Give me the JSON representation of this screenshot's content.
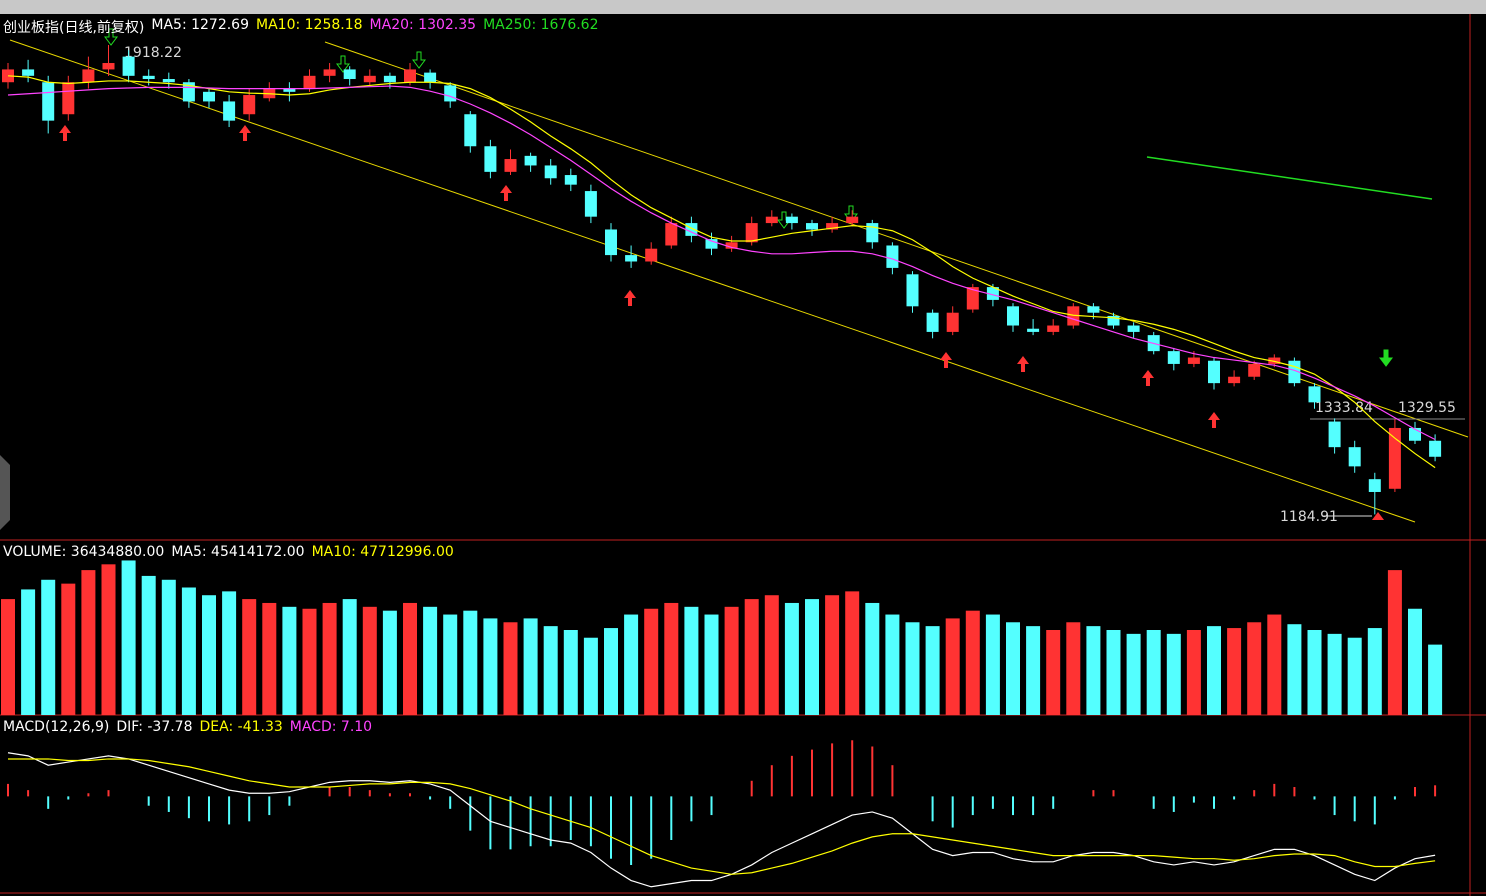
{
  "chart_data": [
    {
      "type": "candlestick",
      "title": "创业板指(日线,前复权)",
      "indicators": [
        {
          "label": "MA5: 1272.69",
          "color": "#ffffff"
        },
        {
          "label": "MA10: 1258.18",
          "color": "#ffff00"
        },
        {
          "label": "MA20: 1302.35",
          "color": "#ff44ff"
        },
        {
          "label": "MA250: 1676.62",
          "color": "#22dd22"
        }
      ],
      "up_color": "#ff3333",
      "down_color": "#54ffff",
      "ylim": [
        1145,
        1965
      ],
      "annotations": [
        "1918.22",
        "1184.91",
        "1333.84",
        "1329.55"
      ],
      "ohlc": [
        [
          1860,
          1890,
          1850,
          1880
        ],
        [
          1880,
          1895,
          1860,
          1870
        ],
        [
          1860,
          1870,
          1780,
          1800
        ],
        [
          1810,
          1870,
          1800,
          1860
        ],
        [
          1860,
          1900,
          1850,
          1880
        ],
        [
          1880,
          1918.22,
          1870,
          1890
        ],
        [
          1900,
          1910,
          1860,
          1870
        ],
        [
          1870,
          1880,
          1855,
          1865
        ],
        [
          1865,
          1875,
          1850,
          1860
        ],
        [
          1860,
          1865,
          1820,
          1830
        ],
        [
          1845,
          1850,
          1820,
          1830
        ],
        [
          1830,
          1840,
          1790,
          1800
        ],
        [
          1810,
          1850,
          1800,
          1840
        ],
        [
          1835,
          1860,
          1830,
          1850
        ],
        [
          1850,
          1860,
          1830,
          1845
        ],
        [
          1850,
          1880,
          1845,
          1870
        ],
        [
          1870,
          1890,
          1860,
          1880
        ],
        [
          1880,
          1885,
          1855,
          1865
        ],
        [
          1860,
          1880,
          1855,
          1870
        ],
        [
          1870,
          1875,
          1850,
          1860
        ],
        [
          1860,
          1890,
          1855,
          1880
        ],
        [
          1875,
          1880,
          1850,
          1860
        ],
        [
          1855,
          1860,
          1820,
          1830
        ],
        [
          1810,
          1815,
          1750,
          1760
        ],
        [
          1760,
          1770,
          1710,
          1720
        ],
        [
          1720,
          1755,
          1715,
          1740
        ],
        [
          1745,
          1750,
          1720,
          1730
        ],
        [
          1730,
          1740,
          1700,
          1710
        ],
        [
          1715,
          1725,
          1690,
          1700
        ],
        [
          1690,
          1700,
          1640,
          1650
        ],
        [
          1630,
          1640,
          1580,
          1590
        ],
        [
          1590,
          1605,
          1570,
          1580
        ],
        [
          1580,
          1610,
          1575,
          1600
        ],
        [
          1605,
          1650,
          1600,
          1640
        ],
        [
          1640,
          1650,
          1610,
          1620
        ],
        [
          1615,
          1625,
          1590,
          1600
        ],
        [
          1600,
          1620,
          1595,
          1610
        ],
        [
          1610,
          1650,
          1605,
          1640
        ],
        [
          1640,
          1660,
          1635,
          1650
        ],
        [
          1650,
          1655,
          1630,
          1640
        ],
        [
          1640,
          1645,
          1620,
          1630
        ],
        [
          1630,
          1650,
          1625,
          1640
        ],
        [
          1640,
          1660,
          1635,
          1650
        ],
        [
          1640,
          1645,
          1600,
          1610
        ],
        [
          1605,
          1610,
          1560,
          1570
        ],
        [
          1560,
          1565,
          1500,
          1510
        ],
        [
          1500,
          1505,
          1460,
          1470
        ],
        [
          1470,
          1510,
          1465,
          1500
        ],
        [
          1505,
          1545,
          1500,
          1540
        ],
        [
          1540,
          1545,
          1510,
          1520
        ],
        [
          1510,
          1515,
          1470,
          1480
        ],
        [
          1475,
          1490,
          1465,
          1470
        ],
        [
          1470,
          1490,
          1465,
          1480
        ],
        [
          1480,
          1515,
          1475,
          1510
        ],
        [
          1510,
          1515,
          1490,
          1500
        ],
        [
          1495,
          1500,
          1475,
          1480
        ],
        [
          1480,
          1485,
          1460,
          1470
        ],
        [
          1465,
          1470,
          1435,
          1440
        ],
        [
          1440,
          1445,
          1410,
          1420
        ],
        [
          1420,
          1440,
          1415,
          1430
        ],
        [
          1425,
          1430,
          1380,
          1390
        ],
        [
          1390,
          1410,
          1385,
          1400
        ],
        [
          1400,
          1425,
          1395,
          1420
        ],
        [
          1420,
          1435,
          1415,
          1430
        ],
        [
          1425,
          1430,
          1385,
          1390
        ],
        [
          1385,
          1390,
          1350,
          1360
        ],
        [
          1330,
          1335,
          1280,
          1290
        ],
        [
          1290,
          1300,
          1250,
          1260
        ],
        [
          1240,
          1250,
          1184.91,
          1220
        ],
        [
          1225,
          1333.84,
          1220,
          1320
        ],
        [
          1320,
          1329.55,
          1295,
          1300
        ],
        [
          1300,
          1310,
          1268,
          1275
        ]
      ],
      "series": [
        {
          "name": "MA10",
          "color": "#ffff00",
          "values": [
            1870,
            1868,
            1860,
            1858,
            1860,
            1862,
            1862,
            1860,
            1858,
            1855,
            1850,
            1845,
            1843,
            1842,
            1840,
            1842,
            1848,
            1852,
            1855,
            1858,
            1860,
            1860,
            1858,
            1850,
            1836,
            1818,
            1798,
            1776,
            1756,
            1734,
            1708,
            1684,
            1664,
            1648,
            1632,
            1618,
            1612,
            1612,
            1618,
            1624,
            1628,
            1632,
            1636,
            1634,
            1628,
            1614,
            1594,
            1572,
            1554,
            1540,
            1526,
            1514,
            1502,
            1496,
            1494,
            1492,
            1488,
            1482,
            1474,
            1464,
            1452,
            1440,
            1430,
            1424,
            1416,
            1404,
            1384,
            1360,
            1330,
            1304,
            1280,
            1258
          ]
        },
        {
          "name": "MA20",
          "color": "#ff44ff",
          "values": [
            1840,
            1842,
            1844,
            1846,
            1848,
            1850,
            1851,
            1852,
            1852,
            1852,
            1851,
            1850,
            1850,
            1850,
            1850,
            1850,
            1851,
            1852,
            1853,
            1854,
            1852,
            1846,
            1838,
            1826,
            1812,
            1796,
            1778,
            1758,
            1738,
            1716,
            1694,
            1674,
            1656,
            1640,
            1626,
            1612,
            1602,
            1596,
            1592,
            1592,
            1594,
            1596,
            1596,
            1592,
            1584,
            1572,
            1558,
            1546,
            1536,
            1528,
            1520,
            1510,
            1500,
            1490,
            1480,
            1470,
            1460,
            1452,
            1444,
            1436,
            1430,
            1426,
            1422,
            1418,
            1410,
            1398,
            1384,
            1370,
            1354,
            1336,
            1318,
            1302
          ]
        }
      ]
    },
    {
      "type": "volume",
      "indicators": [
        {
          "label": "VOLUME: 36434880.00",
          "color": "#ffffff"
        },
        {
          "label": "MA5: 45414172.00",
          "color": "#ffffff"
        },
        {
          "label": "MA10: 47712996.00",
          "color": "#ffff00"
        }
      ],
      "ylim": [
        0,
        88000000
      ],
      "values": [
        60000000,
        65000000,
        70000000,
        68000000,
        75000000,
        78000000,
        80000000,
        72000000,
        70000000,
        66000000,
        62000000,
        64000000,
        60000000,
        58000000,
        56000000,
        55000000,
        58000000,
        60000000,
        56000000,
        54000000,
        58000000,
        56000000,
        52000000,
        54000000,
        50000000,
        48000000,
        50000000,
        46000000,
        44000000,
        40000000,
        45000000,
        52000000,
        55000000,
        58000000,
        56000000,
        52000000,
        56000000,
        60000000,
        62000000,
        58000000,
        60000000,
        62000000,
        64000000,
        58000000,
        52000000,
        48000000,
        46000000,
        50000000,
        54000000,
        52000000,
        48000000,
        46000000,
        44000000,
        48000000,
        46000000,
        44000000,
        42000000,
        44000000,
        42000000,
        44000000,
        46000000,
        45000000,
        48000000,
        52000000,
        47000000,
        44000000,
        42000000,
        40000000,
        45000000,
        75000000,
        55000000,
        36434880
      ]
    },
    {
      "type": "macd",
      "indicators": [
        {
          "label": "MACD(12,26,9)",
          "color": "#ffffff"
        },
        {
          "label": "DIF: -37.78",
          "color": "#ffffff"
        },
        {
          "label": "DEA: -41.33",
          "color": "#ffff00"
        },
        {
          "label": "MACD: 7.10",
          "color": "#ff44ff"
        }
      ],
      "ylim": [
        -62,
        49
      ],
      "up_color": "#ff3333",
      "down_color": "#54ffff",
      "values": [
        8,
        4,
        -8,
        -2,
        2,
        4,
        0,
        -6,
        -10,
        -14,
        -16,
        -18,
        -16,
        -12,
        -6,
        0,
        6,
        6,
        4,
        2,
        2,
        -2,
        -8,
        -22,
        -34,
        -34,
        -32,
        -32,
        -28,
        -32,
        -40,
        -44,
        -40,
        -28,
        -16,
        -12,
        0,
        10,
        20,
        26,
        30,
        34,
        36,
        32,
        20,
        0,
        -16,
        -20,
        -12,
        -8,
        -12,
        -12,
        -8,
        0,
        4,
        4,
        0,
        -8,
        -10,
        -4,
        -8,
        -2,
        4,
        8,
        6,
        -2,
        -12,
        -16,
        -18,
        -2,
        6,
        7.1
      ],
      "series": [
        {
          "name": "DIF",
          "color": "#ffffff",
          "values": [
            28,
            26,
            20,
            22,
            24,
            26,
            24,
            20,
            16,
            12,
            8,
            4,
            2,
            2,
            3,
            6,
            9,
            10,
            10,
            9,
            10,
            8,
            4,
            -6,
            -16,
            -20,
            -24,
            -28,
            -30,
            -36,
            -46,
            -54,
            -58,
            -56,
            -54,
            -54,
            -50,
            -44,
            -36,
            -30,
            -24,
            -18,
            -12,
            -10,
            -14,
            -24,
            -34,
            -38,
            -36,
            -36,
            -40,
            -42,
            -42,
            -38,
            -36,
            -36,
            -38,
            -42,
            -44,
            -42,
            -44,
            -42,
            -38,
            -34,
            -34,
            -38,
            -44,
            -50,
            -54,
            -46,
            -40,
            -37.78
          ]
        },
        {
          "name": "DEA",
          "color": "#ffff00",
          "values": [
            24,
            24,
            24,
            23,
            23,
            24,
            24,
            23,
            21,
            19,
            16,
            13,
            10,
            8,
            6,
            6,
            6,
            7,
            8,
            8,
            9,
            9,
            8,
            5,
            1,
            -3,
            -8,
            -12,
            -16,
            -20,
            -26,
            -32,
            -38,
            -42,
            -46,
            -48,
            -50,
            -49,
            -46,
            -43,
            -39,
            -35,
            -30,
            -26,
            -24,
            -24,
            -26,
            -28,
            -30,
            -32,
            -34,
            -36,
            -38,
            -38,
            -38,
            -38,
            -38,
            -38,
            -39,
            -40,
            -40,
            -41,
            -40,
            -38,
            -37,
            -37,
            -38,
            -42,
            -45,
            -45,
            -43,
            -41.33
          ]
        }
      ]
    }
  ]
}
